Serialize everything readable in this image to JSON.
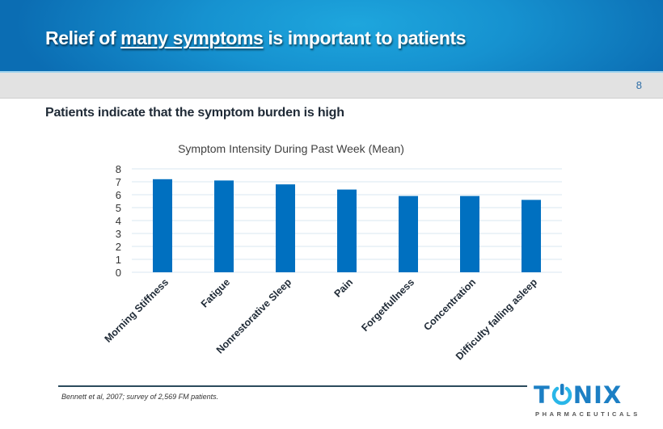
{
  "header": {
    "title_prefix": "Relief of ",
    "title_emphasis": "many symptoms",
    "title_suffix": " is important to patients",
    "slide_number": "8"
  },
  "subtitle": "Patients indicate that the symptom burden is high",
  "footnote": "Bennett et al, 2007; survey of 2,569 FM patients.",
  "logo": {
    "name_t": "T",
    "name_nix": "NIX",
    "tagline": "PHARMACEUTICALS",
    "icon": "power-button-icon"
  },
  "colors": {
    "bar": "#0070c0",
    "grid": "#d9e7f1",
    "header_blue": "#1692d0",
    "logo_blue": "#1c7fc4",
    "logo_light": "#29b6e8"
  },
  "chart_data": {
    "type": "bar",
    "title": "Symptom  Intensity During Past Week (Mean)",
    "xlabel": "",
    "ylabel": "",
    "categories": [
      "Morning Stiffness",
      "Fatigue",
      "Nonrestorative Sleep",
      "Pain",
      "Forgetfullness",
      "Concentration",
      "Difficulty falling asleep"
    ],
    "values": [
      7.2,
      7.1,
      6.8,
      6.4,
      5.9,
      5.9,
      5.6
    ],
    "ylim": [
      0,
      8
    ],
    "yticks": [
      0,
      1,
      2,
      3,
      4,
      5,
      6,
      7,
      8
    ],
    "grid": true,
    "legend": "none"
  }
}
